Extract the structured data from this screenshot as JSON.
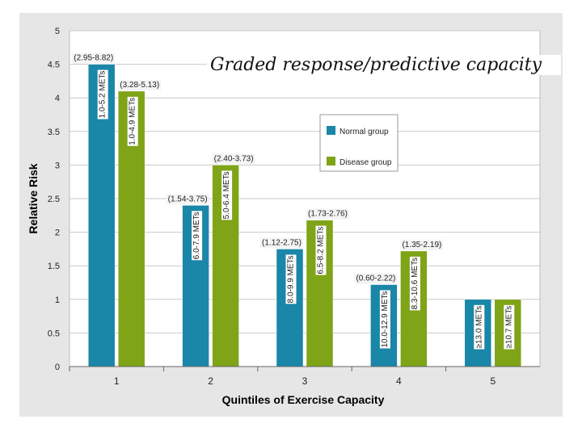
{
  "title": "Graded response/predictive capacity",
  "chart_data": {
    "type": "bar",
    "title": "Graded response/predictive capacity",
    "xlabel": "Quintiles of Exercise Capacity",
    "ylabel": "Relative Risk",
    "categories": [
      "1",
      "2",
      "3",
      "4",
      "5"
    ],
    "ylim": [
      0,
      5
    ],
    "yticks": [
      "0",
      "0.5",
      "1",
      "1.5",
      "2",
      "2.5",
      "3",
      "3.5",
      "4",
      "4.5",
      "5"
    ],
    "grid": true,
    "legend_position": "right",
    "series": [
      {
        "name": "Normal group",
        "color": "#1a86a8",
        "values": [
          4.5,
          2.4,
          1.75,
          1.22,
          1.0
        ],
        "ci_labels": [
          "(2.95-8.82)",
          "(1.54-3.75)",
          "(1.12-2.75)",
          "(0.60-2.22)",
          ""
        ],
        "bar_labels": [
          "1.0-5.2 METs",
          "6.0-7.9 METs",
          "8.0-9.9 METs",
          "10.0-12.9 METs",
          "≥13.0 METs"
        ]
      },
      {
        "name": "Disease group",
        "color": "#7fa418",
        "values": [
          4.1,
          3.0,
          2.18,
          1.72,
          1.0
        ],
        "ci_labels": [
          "(3.28-5.13)",
          "(2.40-3.73)",
          "(1.73-2.76)",
          "(1.35-2.19)",
          ""
        ],
        "bar_labels": [
          "1.0-4.9 METs",
          "5.0-6.4 METs",
          "6.5-8.2 METs",
          "8.3-10.6 METs",
          "≥10.7 METs"
        ]
      }
    ]
  }
}
